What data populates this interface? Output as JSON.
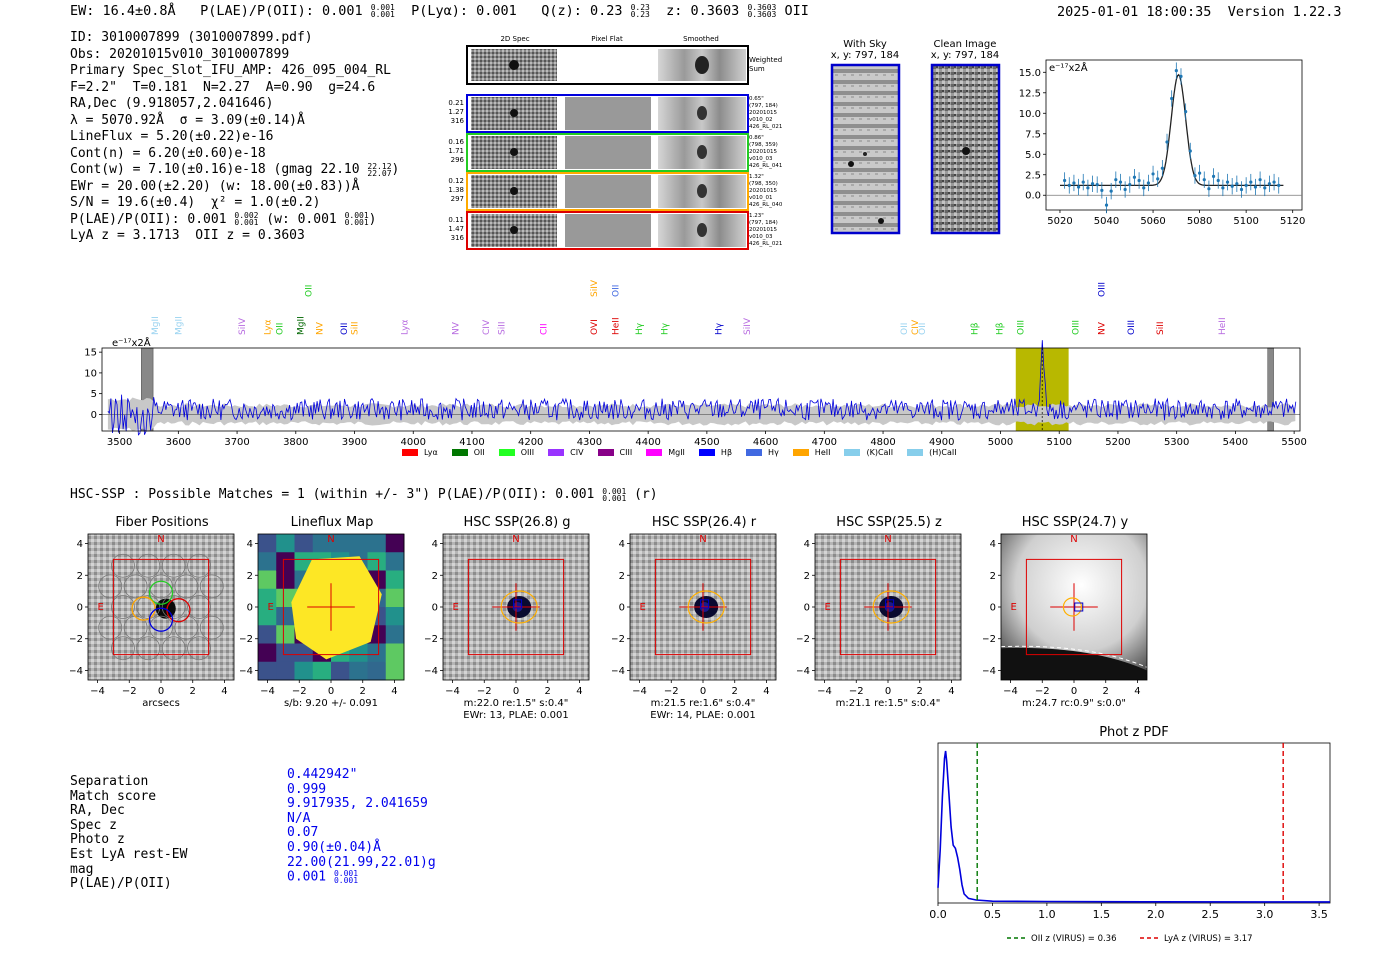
{
  "header": {
    "ew": "EW: 16.4±0.8Å",
    "plae": "P(LAE)/P(OII): 0.001",
    "plae_sup": "0.001",
    "plae_sub": "0.001",
    "plya": "P(Lyα): 0.001",
    "qz": "Q(z): 0.23",
    "qz_sup": "0.23",
    "qz_sub": "0.23",
    "z": "z: 0.3603",
    "z_sup": "0.3603",
    "z_sub": "0.3603",
    "z_line": "OII",
    "datetime": "2025-01-01 18:00:35",
    "version": "Version 1.22.3"
  },
  "info": {
    "id": "ID: 3010007899 (3010007899.pdf)",
    "obs": "Obs: 20201015v010_3010007899",
    "primary": "Primary Spec_Slot_IFU_AMP: 426_095_004_RL",
    "params": "F=2.2\"  T=0.181  N=2.27  A=0.90  g=24.6",
    "radec": "RA,Dec (9.918057,2.041646)",
    "lambda": "λ = 5070.92Å  σ = 3.09(±0.14)Å",
    "lineflux": "LineFlux = 5.20(±0.22)e-16",
    "contn": "Cont(n) = 6.20(±0.60)e-18",
    "contw": "Cont(w) = 7.10(±0.16)e-18 (gmag 22.10",
    "contw_sup": "22.12",
    "contw_sub": "22.07",
    "contw_end": ")",
    "ewr": "EWr = 20.00(±2.20) (w: 18.00(±0.83))Å",
    "sn": "S/N = 19.6(±0.4)  χ² = 1.0(±0.2)",
    "plae_a": "P(LAE)/P(OII): 0.001",
    "plae_a_sup": "0.002",
    "plae_a_sub": "0.001",
    "plae_b": " (w: 0.001",
    "plae_b_sup": "0.001",
    "plae_b_sub": "0.001",
    "plae_c": ")",
    "lyaz": "LyA z = 3.1713  OII z = 0.3603"
  },
  "cutouts": {
    "col_labels": [
      "2D Spec",
      "Pixel Flat",
      "Smoothed"
    ],
    "weighted_label": "Weighted\nSum",
    "rows": [
      {
        "left": [
          "0.21",
          "1.27",
          "316"
        ],
        "right": [
          "0.65\"",
          "(797, 184)",
          "20201015",
          "v010_02",
          "426_RL_021"
        ],
        "color": "#0000dd"
      },
      {
        "left": [
          "0.16",
          "1.71",
          "296"
        ],
        "right": [
          "0.86\"",
          "(798, 359)",
          "20201015",
          "v010_03",
          "426_RL_041"
        ],
        "color": "#22cc22"
      },
      {
        "left": [
          "0.12",
          "1.38",
          "297"
        ],
        "right": [
          "1.32\"",
          "(798, 350)",
          "20201015",
          "v010_01",
          "426_RL_040"
        ],
        "color": "#ffaa00"
      },
      {
        "left": [
          "0.11",
          "1.47",
          "316"
        ],
        "right": [
          "1.23\"",
          "(797, 184)",
          "20201015",
          "v010_03",
          "426_RL_021"
        ],
        "color": "#dd0000"
      }
    ]
  },
  "sky": {
    "with_sky_title": "With Sky",
    "with_sky_xy": "x, y: 797, 184",
    "clean_title": "Clean Image",
    "clean_xy": "x, y: 797, 184"
  },
  "zoom_spectrum": {
    "unit_label": "e⁻¹⁷x2Å",
    "x_ticks": [
      5020,
      5040,
      5060,
      5080,
      5100,
      5120
    ],
    "y_ticks": [
      0.0,
      2.5,
      5.0,
      7.5,
      10.0,
      12.5,
      15.0
    ],
    "x_range": [
      5014,
      5124
    ],
    "y_range": [
      -1.8,
      16.5
    ],
    "gauss": {
      "center": 5070.92,
      "sigma": 3.09,
      "amp": 13.5,
      "base": 1.2
    },
    "points": [
      [
        5022,
        1.8
      ],
      [
        5024,
        1.2
      ],
      [
        5026,
        1.5
      ],
      [
        5028,
        1.0
      ],
      [
        5030,
        1.6
      ],
      [
        5032,
        0.9
      ],
      [
        5034,
        1.4
      ],
      [
        5036,
        1.3
      ],
      [
        5038,
        0.6
      ],
      [
        5040,
        -1.2
      ],
      [
        5042,
        0.5
      ],
      [
        5044,
        1.9
      ],
      [
        5046,
        1.6
      ],
      [
        5048,
        0.7
      ],
      [
        5050,
        1.3
      ],
      [
        5052,
        2.2
      ],
      [
        5054,
        1.8
      ],
      [
        5056,
        0.9
      ],
      [
        5058,
        1.5
      ],
      [
        5060,
        2.6
      ],
      [
        5062,
        2.0
      ],
      [
        5064,
        3.3
      ],
      [
        5066,
        6.5
      ],
      [
        5068,
        11.8
      ],
      [
        5070,
        15.2
      ],
      [
        5072,
        14.5
      ],
      [
        5074,
        10.2
      ],
      [
        5076,
        5.4
      ],
      [
        5078,
        2.4
      ],
      [
        5080,
        2.7
      ],
      [
        5082,
        1.9
      ],
      [
        5084,
        0.8
      ],
      [
        5086,
        2.3
      ],
      [
        5088,
        1.8
      ],
      [
        5090,
        0.9
      ],
      [
        5092,
        1.6
      ],
      [
        5094,
        1.1
      ],
      [
        5096,
        1.4
      ],
      [
        5098,
        0.7
      ],
      [
        5100,
        1.2
      ],
      [
        5102,
        1.6
      ],
      [
        5104,
        1.0
      ],
      [
        5106,
        1.9
      ],
      [
        5108,
        0.9
      ],
      [
        5110,
        1.4
      ],
      [
        5112,
        1.6
      ],
      [
        5114,
        1.2
      ]
    ]
  },
  "full_spectrum": {
    "unit_label": "e⁻¹⁷x2Å",
    "x_ticks": [
      3500,
      3600,
      3700,
      3800,
      3900,
      4000,
      4100,
      4200,
      4300,
      4400,
      4500,
      4600,
      4700,
      4800,
      4900,
      5000,
      5100,
      5200,
      5300,
      5400,
      5500
    ],
    "y_ticks": [
      0,
      5,
      10,
      15
    ],
    "x_range": [
      3470,
      5510
    ],
    "y_range": [
      -4,
      16
    ],
    "highlight": [
      5026,
      5116
    ],
    "line_center": 5071,
    "mask_regions": [
      [
        3537,
        3557
      ],
      [
        5455,
        5465
      ]
    ],
    "spectral_lines": [
      {
        "name": "MgII",
        "x": 3560,
        "color": "#9ad3f0",
        "row": 0
      },
      {
        "name": "MgII",
        "x": 3600,
        "color": "#9ad3f0",
        "row": 0
      },
      {
        "name": "SiIV",
        "x": 3708,
        "color": "#b76be0",
        "row": 0
      },
      {
        "name": "Lyα",
        "x": 3752,
        "color": "#ffa500",
        "row": 0
      },
      {
        "name": "OII",
        "x": 3772,
        "color": "#22cc22",
        "row": 0
      },
      {
        "name": "MgII",
        "x": 3808,
        "color": "#006600",
        "row": 0
      },
      {
        "name": "NV",
        "x": 3840,
        "color": "#ffa500",
        "row": 0
      },
      {
        "name": "OII",
        "x": 3822,
        "color": "#22cc22",
        "row": 1
      },
      {
        "name": "OII",
        "x": 3882,
        "color": "#0000cc",
        "row": 0
      },
      {
        "name": "SiII",
        "x": 3900,
        "color": "#ffa500",
        "row": 0
      },
      {
        "name": "Lyα",
        "x": 3985,
        "color": "#b76be0",
        "row": 0
      },
      {
        "name": "NV",
        "x": 4072,
        "color": "#b76be0",
        "row": 0
      },
      {
        "name": "CIV",
        "x": 4124,
        "color": "#b76be0",
        "row": 0
      },
      {
        "name": "SiII",
        "x": 4150,
        "color": "#b76be0",
        "row": 0
      },
      {
        "name": "CII",
        "x": 4222,
        "color": "#ff00ff",
        "row": 0
      },
      {
        "name": "SiIV",
        "x": 4308,
        "color": "#ffa500",
        "row": 1
      },
      {
        "name": "OVI",
        "x": 4308,
        "color": "#dd0000",
        "row": 0
      },
      {
        "name": "OII",
        "x": 4344,
        "color": "#4169e1",
        "row": 1
      },
      {
        "name": "HeII",
        "x": 4344,
        "color": "#dd0000",
        "row": 0
      },
      {
        "name": "Hγ",
        "x": 4384,
        "color": "#22cc22",
        "row": 0
      },
      {
        "name": "Hγ",
        "x": 4428,
        "color": "#22cc22",
        "row": 0
      },
      {
        "name": "Hγ",
        "x": 4520,
        "color": "#0000cc",
        "row": 0
      },
      {
        "name": "SiIV",
        "x": 4568,
        "color": "#b76be0",
        "row": 0
      },
      {
        "name": "OII",
        "x": 4836,
        "color": "#9ad3f0",
        "row": 0
      },
      {
        "name": "CIV",
        "x": 4854,
        "color": "#ffa500",
        "row": 0
      },
      {
        "name": "OII",
        "x": 4866,
        "color": "#9ad3f0",
        "row": 0
      },
      {
        "name": "Hβ",
        "x": 4956,
        "color": "#22cc22",
        "row": 0
      },
      {
        "name": "Hβ",
        "x": 4998,
        "color": "#22cc22",
        "row": 0
      },
      {
        "name": "OIII",
        "x": 5034,
        "color": "#22cc22",
        "row": 0
      },
      {
        "name": "OIII",
        "x": 5128,
        "color": "#22cc22",
        "row": 0
      },
      {
        "name": "NV",
        "x": 5172,
        "color": "#dd0000",
        "row": 0
      },
      {
        "name": "OIII",
        "x": 5172,
        "color": "#0000cc",
        "row": 1
      },
      {
        "name": "OIII",
        "x": 5222,
        "color": "#0000cc",
        "row": 0
      },
      {
        "name": "SiII",
        "x": 5272,
        "color": "#dd0000",
        "row": 0
      },
      {
        "name": "HeII",
        "x": 5377,
        "color": "#b76be0",
        "row": 0
      }
    ],
    "legend": [
      {
        "label": "Lyα",
        "color": "#ff0000"
      },
      {
        "label": "OII",
        "color": "#007700"
      },
      {
        "label": "OIII",
        "color": "#22ff22"
      },
      {
        "label": "CIV",
        "color": "#9933ff"
      },
      {
        "label": "CIII",
        "color": "#880088"
      },
      {
        "label": "MgII",
        "color": "#ff00ff"
      },
      {
        "label": "Hβ",
        "color": "#0000ff"
      },
      {
        "label": "Hγ",
        "color": "#4169e1"
      },
      {
        "label": "HeII",
        "color": "#ffa500"
      },
      {
        "label": "(K)CaII",
        "color": "#87ceeb"
      },
      {
        "label": "(H)CaII",
        "color": "#87ceeb"
      }
    ]
  },
  "hsc": {
    "summary": "HSC-SSP : Possible Matches = 1 (within +/- 3\")  P(LAE)/P(OII): 0.001",
    "summary_sup": "0.001",
    "summary_sub": "0.001",
    "summary_end": "(r)",
    "panels": [
      {
        "title": "Fiber Positions",
        "caption": [
          "arcsecs"
        ],
        "type": "fiber"
      },
      {
        "title": "Lineflux Map",
        "caption": [
          "s/b: 9.20 +/- 0.091"
        ],
        "type": "lineflux"
      },
      {
        "title": "HSC SSP(26.8) g",
        "caption": [
          "m:22.0  re:1.5\"  s:0.4\"",
          "EWr: 13, PLAE: 0.001"
        ],
        "type": "source"
      },
      {
        "title": "HSC SSP(26.4) r",
        "caption": [
          "m:21.5  re:1.6\"  s:0.4\"",
          "EWr: 14, PLAE: 0.001"
        ],
        "type": "source"
      },
      {
        "title": "HSC SSP(25.5) z",
        "caption": [
          "m:21.1  re:1.5\"  s:0.4\""
        ],
        "type": "source"
      },
      {
        "title": "HSC SSP(24.7) y",
        "caption": [
          "m:24.7  rc:0.9\"  s:0.0\""
        ],
        "type": "ysrc"
      }
    ],
    "compass_n": "N",
    "compass_e": "E",
    "ticks": [
      "4",
      "2",
      "0",
      "−2",
      "−4"
    ],
    "xticks": [
      "−4",
      "−2",
      "0",
      "2",
      "4"
    ]
  },
  "match_table": {
    "labels": [
      "Separation",
      "Match score",
      "RA, Dec",
      "Spec z",
      "Photo z",
      "Est LyA rest-EW",
      "mag",
      "P(LAE)/P(OII)"
    ],
    "values": [
      "0.442942\"",
      "0.999",
      "9.917935, 2.041659",
      "N/A",
      "0.07",
      "0.90(±0.04)Å",
      "22.00(21.99,22.01)g",
      "0.001"
    ],
    "plae_sup": "0.001",
    "plae_sub": "0.001"
  },
  "photz": {
    "title": "Phot z PDF",
    "x_ticks": [
      "0.0",
      "0.5",
      "1.0",
      "1.5",
      "2.0",
      "2.5",
      "3.0",
      "3.5"
    ],
    "x_range": [
      0,
      3.6
    ],
    "oii_z": 0.36,
    "lya_z": 3.17,
    "legend_oii": "OII z (VIRUS) = 0.36",
    "legend_lya": "LyA z (VIRUS) = 3.17",
    "pdf": [
      [
        0.0,
        0.1
      ],
      [
        0.02,
        0.35
      ],
      [
        0.04,
        0.7
      ],
      [
        0.06,
        0.95
      ],
      [
        0.07,
        1.0
      ],
      [
        0.08,
        0.93
      ],
      [
        0.1,
        0.72
      ],
      [
        0.12,
        0.5
      ],
      [
        0.14,
        0.38
      ],
      [
        0.16,
        0.36
      ],
      [
        0.18,
        0.3
      ],
      [
        0.2,
        0.22
      ],
      [
        0.22,
        0.12
      ],
      [
        0.24,
        0.06
      ],
      [
        0.28,
        0.03
      ],
      [
        0.35,
        0.02
      ],
      [
        0.5,
        0.012
      ],
      [
        1.0,
        0.01
      ],
      [
        2.0,
        0.008
      ],
      [
        3.0,
        0.007
      ],
      [
        3.6,
        0.007
      ]
    ]
  }
}
